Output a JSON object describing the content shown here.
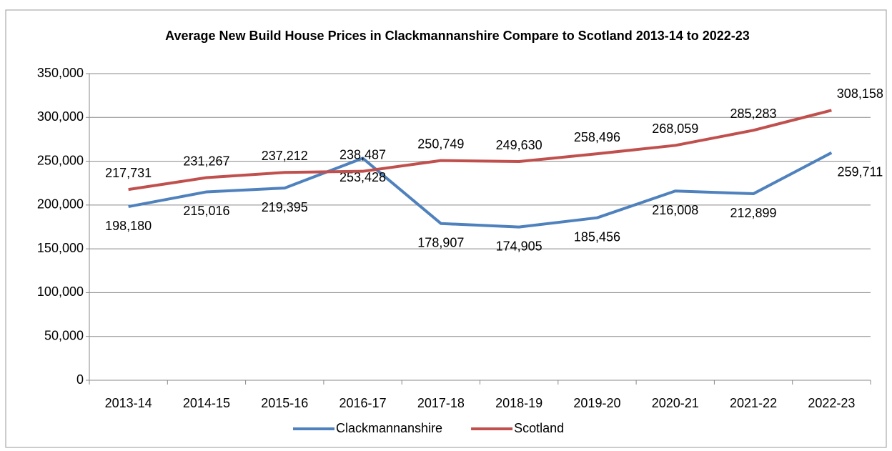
{
  "chart_data": {
    "type": "line",
    "title": "Average New Build House Prices in Clackmannanshire Compare to Scotland 2013-14 to 2022-23",
    "categories": [
      "2013-14",
      "2014-15",
      "2015-16",
      "2016-17",
      "2017-18",
      "2018-19",
      "2019-20",
      "2020-21",
      "2021-22",
      "2022-23"
    ],
    "series": [
      {
        "name": "Clackmannanshire",
        "color": "#4f81bd",
        "values": [
          198180,
          215016,
          219395,
          253428,
          178907,
          174905,
          185456,
          216008,
          212899,
          259711
        ],
        "value_labels": [
          "198,180",
          "215,016",
          "219,395",
          "253,428",
          "178,907",
          "174,905",
          "185,456",
          "216,008",
          "212,899",
          "259,711"
        ]
      },
      {
        "name": "Scotland",
        "color": "#c0504d",
        "values": [
          217731,
          231267,
          237212,
          238487,
          250749,
          249630,
          258496,
          268059,
          285283,
          308158
        ],
        "value_labels": [
          "217,731",
          "231,267",
          "237,212",
          "238,487",
          "250,749",
          "249,630",
          "258,496",
          "268,059",
          "285,283",
          "308,158"
        ]
      }
    ],
    "ylim": [
      0,
      350000
    ],
    "yticks": [
      0,
      {
        "value": 50000,
        "label": "50,000"
      },
      {
        "value": 100000,
        "label": "100,000"
      },
      {
        "value": 150000,
        "label": "150,000"
      },
      {
        "value": 200000,
        "label": "200,000"
      },
      {
        "value": 250000,
        "label": "250,000"
      },
      {
        "value": 300000,
        "label": "300,000"
      },
      {
        "value": 350000,
        "label": "350,000"
      }
    ],
    "grid": true,
    "legend": "bottom"
  }
}
